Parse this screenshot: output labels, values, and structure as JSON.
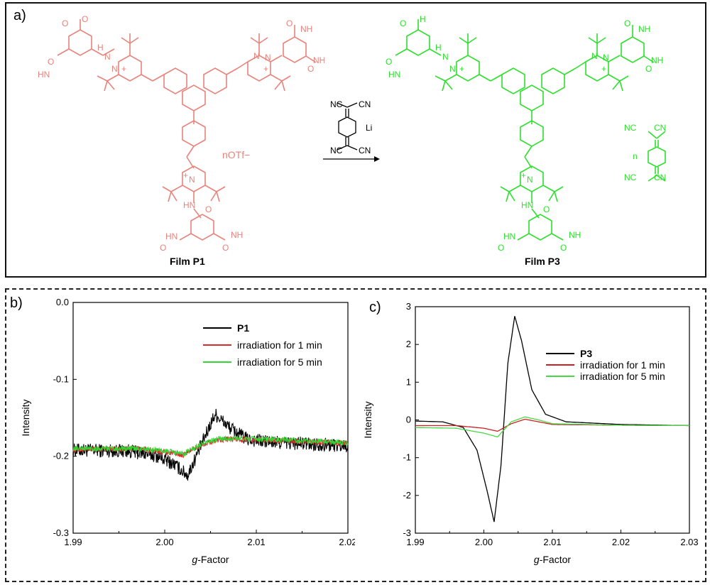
{
  "panel_a": {
    "label": "a)",
    "film_left": "Film P1",
    "film_right": "Film P3",
    "counterion": "nOTf−",
    "reagent": {
      "nc1": "NC",
      "cn1": "CN",
      "li": "Li",
      "nc2": "NC",
      "cn2": "CN"
    },
    "product_anion": {
      "nc1": "NC",
      "cn1": "CN",
      "n": "n",
      "nc2": "NC",
      "cn2": "CN"
    },
    "colors": {
      "left_molecule": "#e8837c",
      "right_molecule": "#2ee02e",
      "reagent": "#000000"
    }
  },
  "chart_data": [
    {
      "panel_label": "b)",
      "type": "line",
      "xlabel_italic": "g",
      "xlabel_rest": "-Factor",
      "ylabel": "Intensity",
      "xlim": [
        1.99,
        2.02
      ],
      "ylim": [
        -0.3,
        0.0
      ],
      "xticks": [
        "1.99",
        "2.00",
        "2.01",
        "2.02"
      ],
      "yticks": [
        "0.0",
        "-0.1",
        "-0.2",
        "-0.3"
      ],
      "legend_position": "top-right",
      "series": [
        {
          "name": "P1",
          "color": "#000000",
          "noise": 0.009,
          "x": [
            1.99,
            1.996,
            1.999,
            2.001,
            2.0025,
            2.004,
            2.0055,
            2.007,
            2.009,
            2.012,
            2.02
          ],
          "y": [
            -0.192,
            -0.193,
            -0.199,
            -0.21,
            -0.225,
            -0.185,
            -0.145,
            -0.162,
            -0.178,
            -0.182,
            -0.186
          ]
        },
        {
          "name": "irradiation for 1 min",
          "color": "#d32d2d",
          "noise": 0.0035,
          "x": [
            1.99,
            1.997,
            2.0,
            2.002,
            2.004,
            2.006,
            2.009,
            2.02
          ],
          "y": [
            -0.191,
            -0.19,
            -0.194,
            -0.198,
            -0.185,
            -0.178,
            -0.178,
            -0.183
          ]
        },
        {
          "name": "irradiation for 5 min",
          "color": "#33d633",
          "noise": 0.0035,
          "x": [
            1.99,
            1.997,
            2.0,
            2.002,
            2.004,
            2.006,
            2.009,
            2.02
          ],
          "y": [
            -0.19,
            -0.19,
            -0.193,
            -0.197,
            -0.184,
            -0.177,
            -0.177,
            -0.182
          ]
        }
      ]
    },
    {
      "panel_label": "c)",
      "type": "line",
      "xlabel_italic": "g",
      "xlabel_rest": "-Factor",
      "ylabel": "Intensity",
      "xlim": [
        1.99,
        2.03
      ],
      "ylim": [
        -3,
        3
      ],
      "xticks": [
        "1.99",
        "2.00",
        "2.01",
        "2.02",
        "2.03"
      ],
      "yticks": [
        "3",
        "2",
        "1",
        "0",
        "-1",
        "-2",
        "-3"
      ],
      "legend_position": "top-right",
      "series": [
        {
          "name": "P3",
          "color": "#000000",
          "noise": 0.0,
          "x": [
            1.99,
            1.994,
            1.997,
            1.999,
            2.0005,
            2.0015,
            2.0025,
            2.0035,
            2.0045,
            2.0055,
            2.007,
            2.009,
            2.012,
            2.02,
            2.03
          ],
          "y": [
            -0.03,
            -0.05,
            -0.2,
            -0.8,
            -1.9,
            -2.7,
            -1.2,
            1.5,
            2.75,
            2.1,
            0.8,
            0.15,
            -0.05,
            -0.12,
            -0.15
          ]
        },
        {
          "name": "irradiation for 1 min",
          "color": "#cc1f1f",
          "noise": 0.0,
          "x": [
            1.99,
            1.996,
            2.0,
            2.002,
            2.004,
            2.006,
            2.008,
            2.01,
            2.02,
            2.03
          ],
          "y": [
            -0.15,
            -0.15,
            -0.22,
            -0.3,
            -0.1,
            0.02,
            -0.05,
            -0.12,
            -0.14,
            -0.15
          ]
        },
        {
          "name": "irradiation for 5 min",
          "color": "#46d846",
          "noise": 0.0,
          "x": [
            1.99,
            1.996,
            2.0,
            2.002,
            2.004,
            2.006,
            2.008,
            2.01,
            2.02,
            2.03
          ],
          "y": [
            -0.2,
            -0.22,
            -0.35,
            -0.45,
            -0.05,
            0.08,
            0.0,
            -0.1,
            -0.14,
            -0.15
          ]
        }
      ]
    }
  ]
}
